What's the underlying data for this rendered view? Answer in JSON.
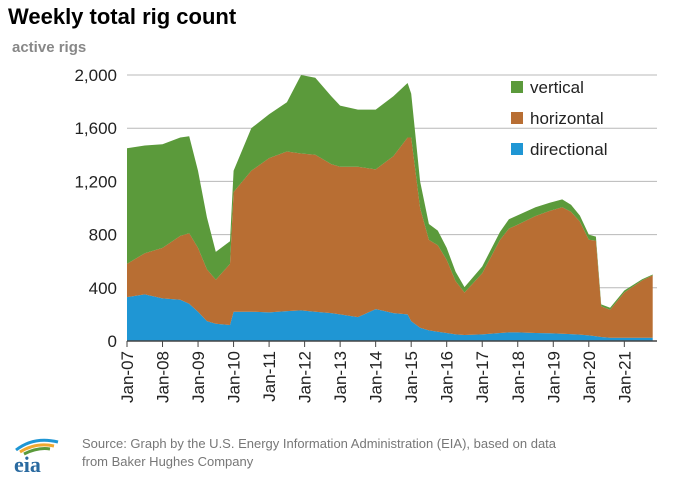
{
  "header": {
    "title": "Weekly total rig count",
    "unit": "active rigs"
  },
  "footer": {
    "source_line1": "Source: Graph by the U.S. Energy Information Administration (EIA), based on data",
    "source_line2": "from Baker Hughes Company",
    "logo_text": "eia"
  },
  "colors": {
    "vertical": "#5b9a3b",
    "horizontal": "#b86e33",
    "directional": "#1f96d4",
    "grid": "#b8b8b8",
    "axis": "#444444"
  },
  "chart_data": {
    "type": "area",
    "stacked": true,
    "title": "Weekly total rig count",
    "ylabel": "active rigs",
    "xlabel": "",
    "ylim": [
      0,
      2000
    ],
    "xlim": [
      2007.0,
      2021.92
    ],
    "y_ticks": [
      0,
      400,
      800,
      1200,
      1600,
      2000
    ],
    "y_tick_labels": [
      "0",
      "400",
      "800",
      "1,200",
      "1,600",
      "2,000"
    ],
    "x_tick_labels": [
      "Jan-07",
      "Jan-08",
      "Jan-09",
      "Jan-10",
      "Jan-11",
      "Jan-12",
      "Jan-13",
      "Jan-14",
      "Jan-15",
      "Jan-16",
      "Jan-17",
      "Jan-18",
      "Jan-19",
      "Jan-20",
      "Jan-21"
    ],
    "x_tick_values": [
      2007,
      2008,
      2009,
      2010,
      2011,
      2012,
      2013,
      2014,
      2015,
      2016,
      2017,
      2018,
      2019,
      2020,
      2021
    ],
    "grid": true,
    "legend_position": "top-right",
    "legend": [
      "vertical",
      "horizontal",
      "directional"
    ],
    "x": [
      2007.0,
      2007.5,
      2008.0,
      2008.5,
      2008.75,
      2009.0,
      2009.25,
      2009.5,
      2009.9,
      2010.0,
      2010.5,
      2011.0,
      2011.5,
      2011.9,
      2012.3,
      2012.75,
      2013.0,
      2013.5,
      2014.0,
      2014.5,
      2014.9,
      2015.0,
      2015.25,
      2015.5,
      2015.75,
      2016.0,
      2016.25,
      2016.5,
      2017.0,
      2017.5,
      2017.75,
      2018.0,
      2018.5,
      2018.9,
      2019.25,
      2019.5,
      2019.75,
      2020.0,
      2020.2,
      2020.35,
      2020.6,
      2021.0,
      2021.5,
      2021.8
    ],
    "series": [
      {
        "name": "directional",
        "values": [
          330,
          350,
          320,
          310,
          280,
          220,
          150,
          130,
          120,
          220,
          220,
          215,
          225,
          230,
          220,
          210,
          200,
          180,
          240,
          210,
          200,
          150,
          100,
          80,
          70,
          60,
          50,
          45,
          50,
          60,
          65,
          65,
          60,
          58,
          55,
          52,
          48,
          42,
          35,
          30,
          25,
          25,
          25,
          25
        ]
      },
      {
        "name": "horizontal",
        "values": [
          250,
          310,
          380,
          480,
          530,
          480,
          390,
          330,
          460,
          900,
          1060,
          1160,
          1200,
          1180,
          1180,
          1120,
          1110,
          1130,
          1050,
          1180,
          1330,
          1380,
          900,
          680,
          650,
          550,
          400,
          320,
          460,
          700,
          780,
          810,
          880,
          920,
          950,
          920,
          850,
          720,
          720,
          230,
          210,
          340,
          430,
          470
        ]
      },
      {
        "name": "vertical",
        "values": [
          870,
          810,
          780,
          740,
          730,
          580,
          390,
          210,
          170,
          160,
          320,
          330,
          370,
          590,
          580,
          510,
          460,
          430,
          450,
          450,
          410,
          330,
          200,
          120,
          110,
          90,
          70,
          40,
          50,
          60,
          70,
          70,
          65,
          62,
          60,
          53,
          45,
          38,
          30,
          15,
          15,
          15,
          10,
          5
        ]
      }
    ]
  }
}
